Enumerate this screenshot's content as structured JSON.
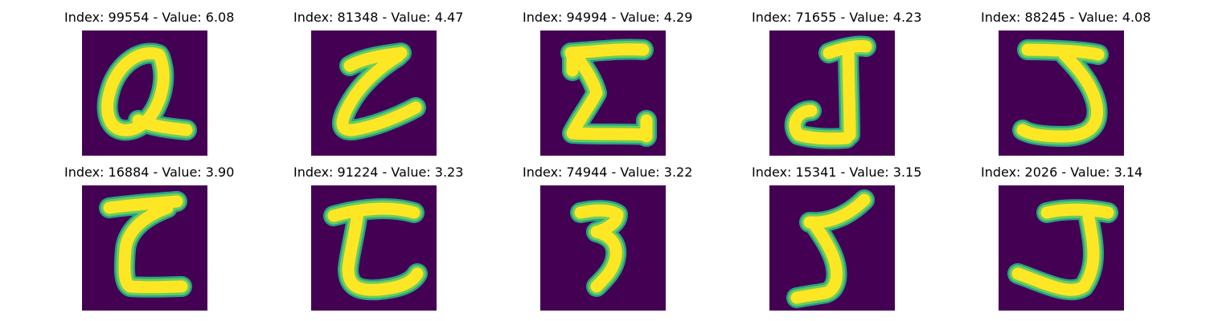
{
  "colors": {
    "background": "#440154",
    "stroke_outer": "#26a386",
    "stroke_mid": "#6ccd5a",
    "stroke_inner": "#fde725"
  },
  "panels": [
    {
      "title": "Index: 99554 - Value: 6.08",
      "glyph": "glyph-q-shape-icon"
    },
    {
      "title": "Index: 81348 - Value: 4.47",
      "glyph": "glyph-z-shape-icon"
    },
    {
      "title": "Index: 94994 - Value: 4.29",
      "glyph": "glyph-sigma-shape-icon"
    },
    {
      "title": "Index: 71655 - Value: 4.23",
      "glyph": "glyph-j-shape-icon"
    },
    {
      "title": "Index: 88245 - Value: 4.08",
      "glyph": "glyph-5-shape-icon"
    },
    {
      "title": "Index: 16884 - Value: 3.90",
      "glyph": "glyph-z-shape-icon"
    },
    {
      "title": "Index: 91224 - Value: 3.23",
      "glyph": "glyph-z-shape-icon"
    },
    {
      "title": "Index: 74944 - Value: 3.22",
      "glyph": "glyph-3-shape-icon"
    },
    {
      "title": "Index: 15341 - Value: 3.15",
      "glyph": "glyph-5-shape-icon"
    },
    {
      "title": "Index: 2026 - Value: 3.14",
      "glyph": "glyph-j-shape-icon"
    }
  ]
}
